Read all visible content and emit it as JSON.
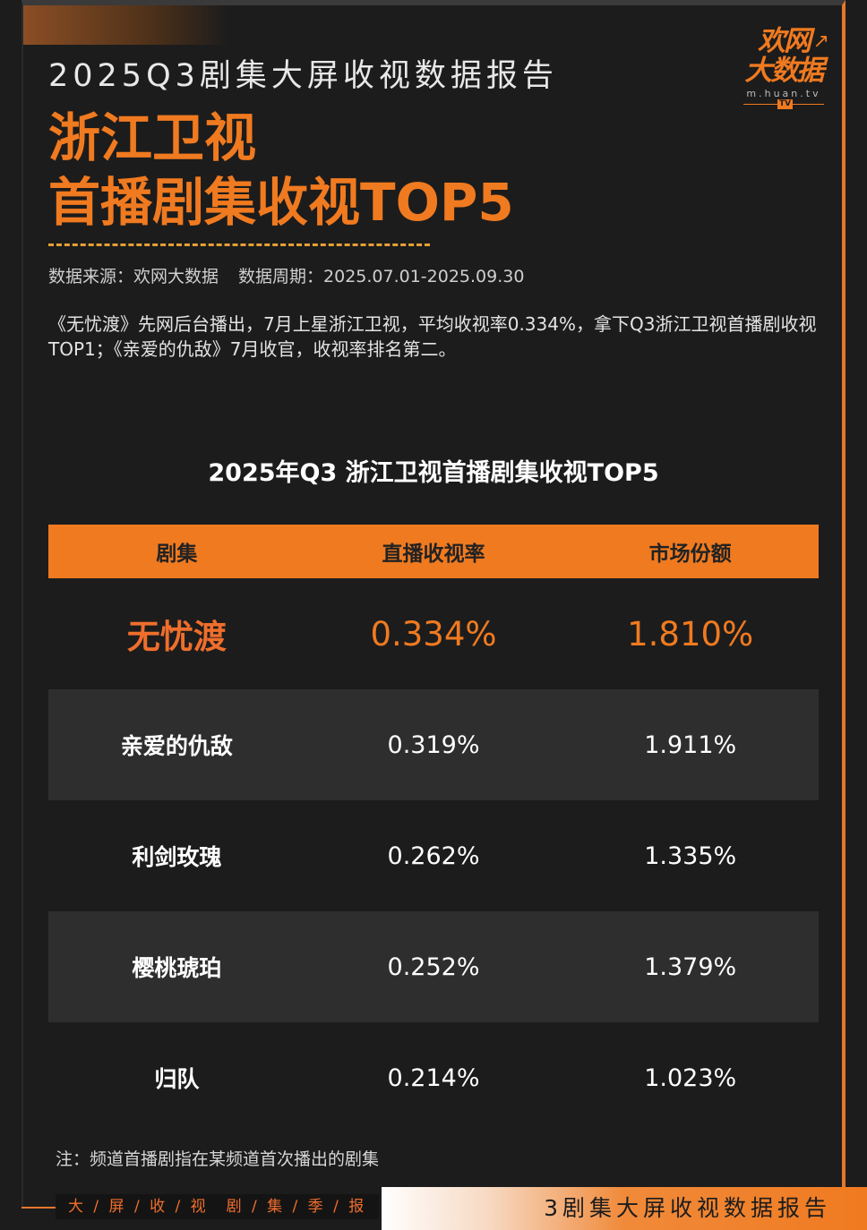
{
  "header": {
    "report_title": "2025Q3剧集大屏收视数据报告",
    "headline_line1": "浙江卫视",
    "headline_line2": "首播剧集收视TOP5"
  },
  "logo": {
    "line1": "欢网",
    "line2": "大数据",
    "domain": "m.huan.tv",
    "badge": "TV"
  },
  "meta": {
    "source": "数据来源：欢网大数据",
    "period": "数据周期：2025.07.01-2025.09.30"
  },
  "description": "《无忧渡》先网后台播出，7月上星浙江卫视，平均收视率0.334%，拿下Q3浙江卫视首播剧收视TOP1；《亲爱的仇敌》7月收官，收视率排名第二。",
  "table": {
    "title": "2025年Q3 浙江卫视首播剧集收视TOP5",
    "headers": [
      "剧集",
      "直播收视率",
      "市场份额"
    ],
    "rows": [
      {
        "name": "无忧渡",
        "rating": "0.334%",
        "share": "1.810%"
      },
      {
        "name": "亲爱的仇敌",
        "rating": "0.319%",
        "share": "1.911%"
      },
      {
        "name": "利剑玫瑰",
        "rating": "0.262%",
        "share": "1.335%"
      },
      {
        "name": "樱桃琥珀",
        "rating": "0.252%",
        "share": "1.379%"
      },
      {
        "name": "归队",
        "rating": "0.214%",
        "share": "1.023%"
      }
    ]
  },
  "note": "注：频道首播剧指在某频道首次播出的剧集",
  "footer": {
    "left": "大 / 屏 / 收 / 视　剧 / 集 / 季 / 报",
    "right": "3剧集大屏收视数据报告"
  },
  "colors": {
    "accent": "#f07a20",
    "background": "#1c1c1c",
    "row_alt": "#2e2e2e"
  }
}
